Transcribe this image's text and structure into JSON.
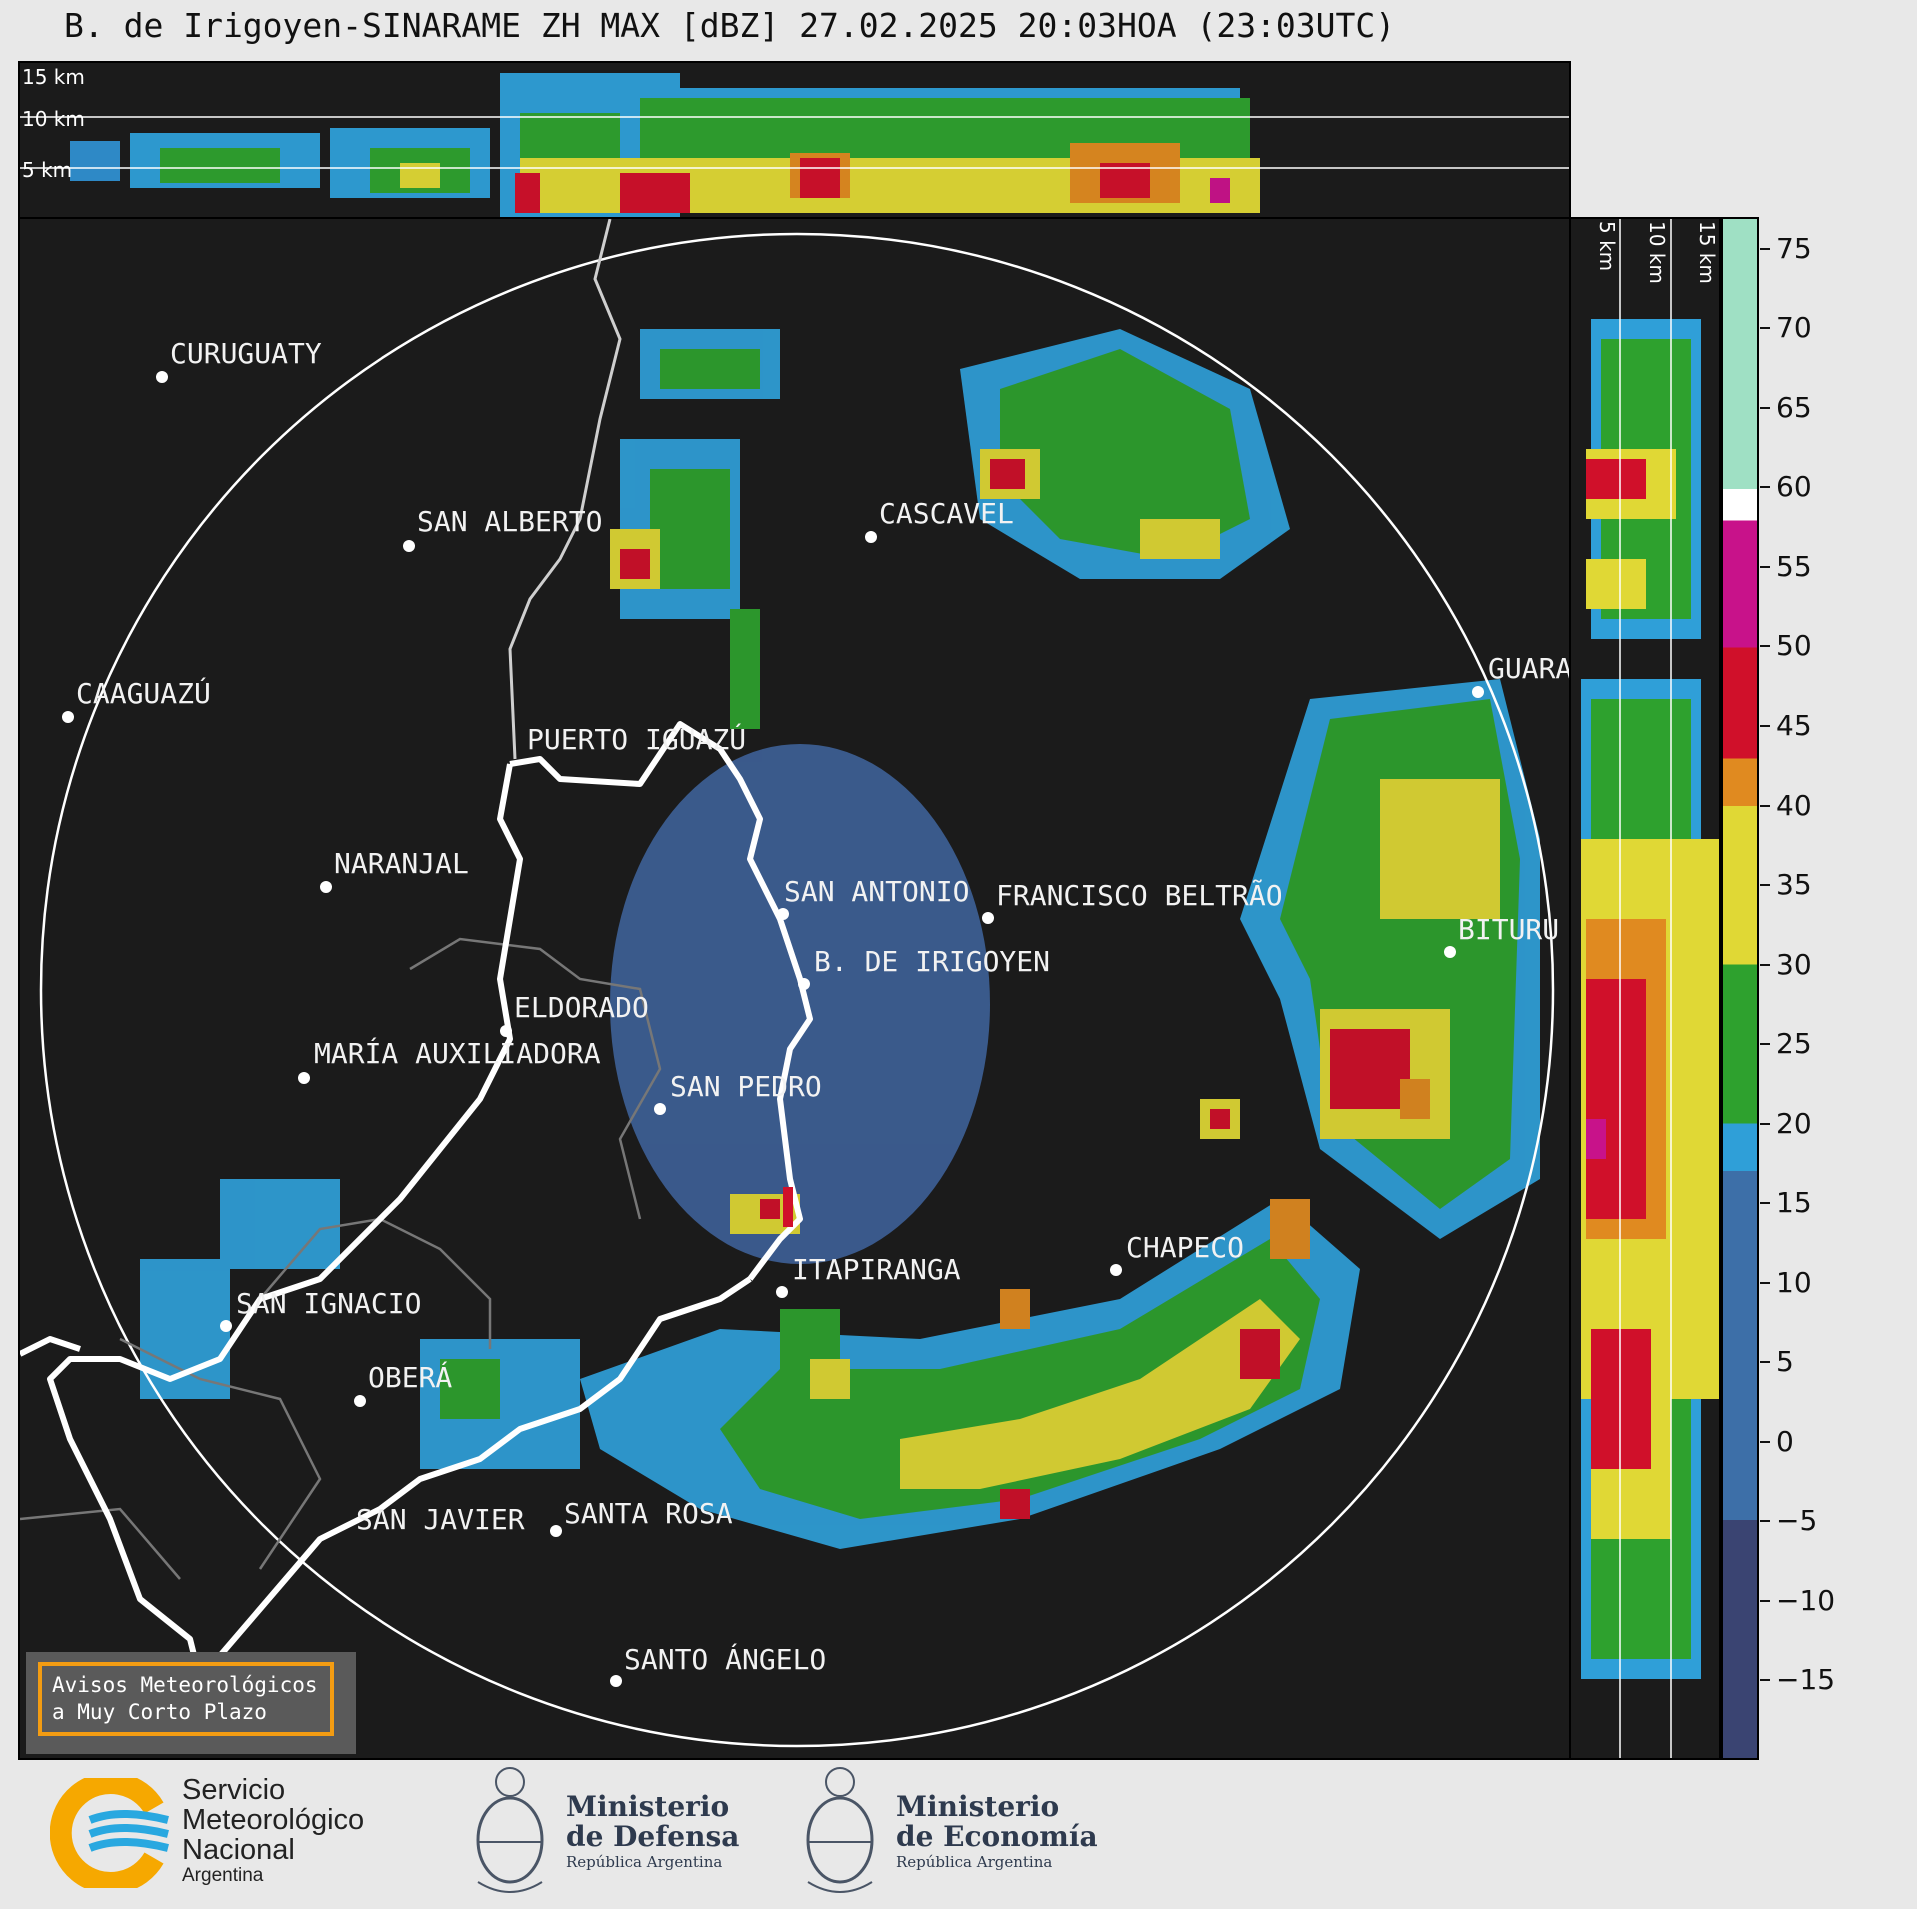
{
  "title": "B. de Irigoyen-SINARAME ZH MAX [dBZ] 27.02.2025 20:03HOA (23:03UTC)",
  "top_panel": {
    "altitude_labels": [
      "15 km",
      "10 km",
      "5 km"
    ]
  },
  "side_panel": {
    "altitude_labels": [
      "5 km",
      "10 km",
      "15 km"
    ]
  },
  "cities": [
    {
      "name": "CURUGUATY"
    },
    {
      "name": "SAN ALBERTO"
    },
    {
      "name": "CASCAVEL"
    },
    {
      "name": "CAAGUAZÚ"
    },
    {
      "name": "PUERTO IGUAZÚ"
    },
    {
      "name": "GUARA"
    },
    {
      "name": "NARANJAL"
    },
    {
      "name": "SAN ANTONIO"
    },
    {
      "name": "FRANCISCO BELTRÃO"
    },
    {
      "name": "BITURU"
    },
    {
      "name": "B. DE IRIGOYEN"
    },
    {
      "name": "ELDORADO"
    },
    {
      "name": "MARÍA AUXILIADORA"
    },
    {
      "name": "SAN PEDRO"
    },
    {
      "name": "CHAPECO"
    },
    {
      "name": "ITAPIRANGA"
    },
    {
      "name": "SAN IGNACIO"
    },
    {
      "name": "OBERÁ"
    },
    {
      "name": "SAN JAVIER"
    },
    {
      "name": "SANTA ROSA"
    },
    {
      "name": "SANTO ÁNGELO"
    }
  ],
  "colorbar": {
    "ticks": [
      75,
      70,
      65,
      60,
      55,
      50,
      45,
      40,
      35,
      30,
      25,
      20,
      15,
      10,
      5,
      0,
      -5,
      -10,
      -15
    ],
    "tick_labels": [
      "75",
      "70",
      "65",
      "60",
      "55",
      "50",
      "45",
      "40",
      "35",
      "30",
      "25",
      "20",
      "15",
      "10",
      "5",
      "0",
      "−5",
      "−10",
      "−15"
    ],
    "range": [
      -20,
      77
    ],
    "colors": {
      "lt_minus5": "#3a4472",
      "minus5_to_17": "#3d6fa8",
      "17_to_20": "#2f9fd8",
      "20_to_30": "#2ea12e",
      "30_to_40": "#e0d835",
      "40_to_43": "#e08a20",
      "43_to_50": "#d0102a",
      "50_to_58": "#c8128a",
      "58_to_60": "#ffffff",
      "gt_60": "#9fe0c4"
    }
  },
  "notice": {
    "line1": "Avisos Meteorológicos",
    "line2": "a Muy Corto Plazo"
  },
  "footer": {
    "smn": {
      "line1": "Servicio",
      "line2": "Meteorológico",
      "line3": "Nacional",
      "line4": "Argentina"
    },
    "defensa": {
      "line1": "Ministerio",
      "line2": "de Defensa",
      "line3": "República Argentina"
    },
    "economia": {
      "line1": "Ministerio",
      "line2": "de Economía",
      "line3": "República Argentina"
    }
  }
}
